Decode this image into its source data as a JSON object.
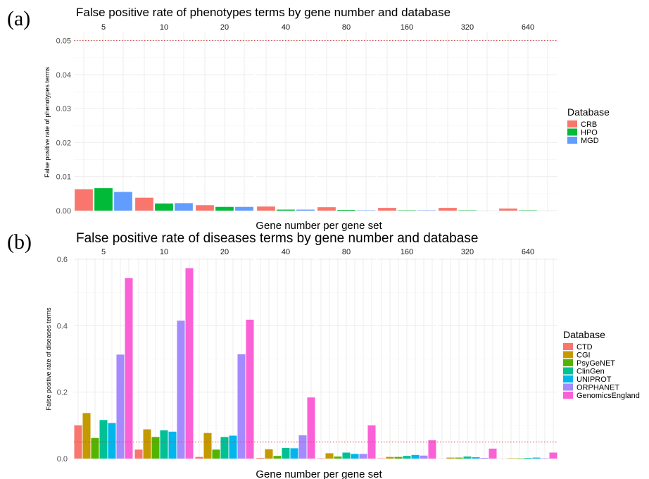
{
  "panel_a_tag": "(a)",
  "panel_b_tag": "(b)",
  "chart_data": [
    {
      "type": "bar",
      "title": "False positive rate of phenotypes terms by gene number and database",
      "xlabel": "Gene number per gene set",
      "ylabel": "False positive rate of phenotypes terms",
      "facets": [
        "5",
        "10",
        "20",
        "40",
        "80",
        "160",
        "320",
        "640"
      ],
      "ylim": [
        0,
        0.052
      ],
      "yticks": [
        "0.00",
        "0.01",
        "0.02",
        "0.03",
        "0.04",
        "0.05"
      ],
      "reference_line": 0.05,
      "legend_title": "Database",
      "legend_position": "right",
      "grid": true,
      "series": [
        {
          "name": "CRB",
          "color": "#F8766D",
          "values": [
            0.0063,
            0.0038,
            0.0016,
            0.0012,
            0.001,
            0.0008,
            0.0008,
            0.0006
          ]
        },
        {
          "name": "HPO",
          "color": "#00BA38",
          "values": [
            0.0066,
            0.0021,
            0.0011,
            0.0003,
            0.0002,
            0.0001,
            0.0001,
            0.0001
          ]
        },
        {
          "name": "MGD",
          "color": "#619CFF",
          "values": [
            0.0055,
            0.0022,
            0.0011,
            0.0003,
            0.0001,
            0.0001,
            0.0,
            0.0
          ]
        }
      ]
    },
    {
      "type": "bar",
      "title": "False positive rate of diseases terms by gene number and database",
      "xlabel": "Gene number per gene set",
      "ylabel": "False positive rate of diseases terms",
      "facets": [
        "5",
        "10",
        "20",
        "40",
        "80",
        "160",
        "320",
        "640"
      ],
      "ylim": [
        0,
        0.6
      ],
      "yticks": [
        "0.0",
        "0.2",
        "0.4",
        "0.6"
      ],
      "reference_line": 0.05,
      "legend_title": "Database",
      "legend_position": "right",
      "grid": true,
      "series": [
        {
          "name": "CTD",
          "color": "#F8766D",
          "values": [
            0.1,
            0.027,
            0.005,
            0.002,
            0.001,
            0.001,
            0.0,
            0.0
          ]
        },
        {
          "name": "CGI",
          "color": "#C49A00",
          "values": [
            0.137,
            0.088,
            0.077,
            0.028,
            0.016,
            0.005,
            0.003,
            0.001
          ]
        },
        {
          "name": "PsyGeNET",
          "color": "#53B400",
          "values": [
            0.062,
            0.065,
            0.027,
            0.008,
            0.006,
            0.005,
            0.003,
            0.001
          ]
        },
        {
          "name": "ClinGen",
          "color": "#00C094",
          "values": [
            0.116,
            0.085,
            0.065,
            0.032,
            0.018,
            0.008,
            0.006,
            0.002
          ]
        },
        {
          "name": "UNIPROT",
          "color": "#00B6EB",
          "values": [
            0.107,
            0.081,
            0.069,
            0.031,
            0.014,
            0.011,
            0.004,
            0.003
          ]
        },
        {
          "name": "ORPHANET",
          "color": "#A58AFF",
          "values": [
            0.313,
            0.415,
            0.314,
            0.07,
            0.014,
            0.009,
            0.002,
            0.001
          ]
        },
        {
          "name": "GenomicsEngland",
          "color": "#FB61D7",
          "values": [
            0.543,
            0.573,
            0.418,
            0.184,
            0.1,
            0.055,
            0.03,
            0.018
          ]
        }
      ]
    }
  ]
}
